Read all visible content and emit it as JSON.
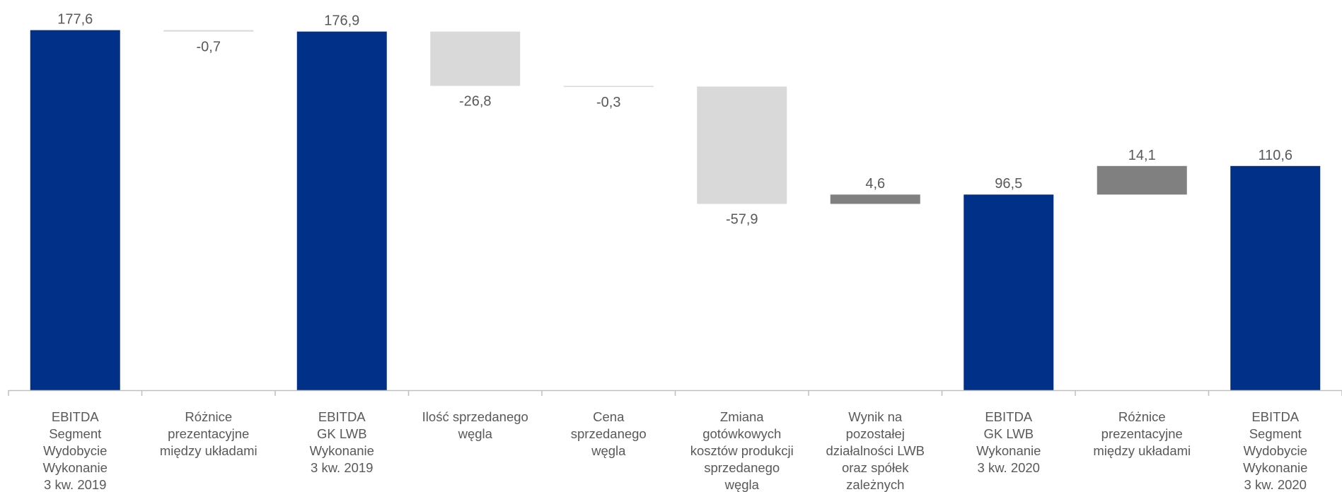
{
  "chart_data": {
    "type": "waterfall",
    "title": "",
    "xlabel": "",
    "ylabel": "",
    "ylim": [
      0,
      180
    ],
    "grid": false,
    "legend": "none",
    "colors": {
      "total": "#003087",
      "decrease": "#d9d9d9",
      "increase": "#808080",
      "axis": "#bfbfbf",
      "label": "#595959"
    },
    "bars": [
      {
        "kind": "total",
        "label_lines": [
          "EBITDA",
          "Segment",
          "Wydobycie",
          "Wykonanie",
          "3 kw. 2019"
        ],
        "value": 177.6,
        "value_label": "177,6"
      },
      {
        "kind": "delta",
        "label_lines": [
          "Różnice",
          "prezentacyjne",
          "między układami"
        ],
        "value": -0.7,
        "value_label": "-0,7"
      },
      {
        "kind": "total",
        "label_lines": [
          "EBITDA",
          "GK LWB",
          "Wykonanie",
          "3 kw. 2019"
        ],
        "value": 176.9,
        "value_label": "176,9"
      },
      {
        "kind": "delta",
        "label_lines": [
          "Ilość sprzedanego",
          "węgla"
        ],
        "value": -26.8,
        "value_label": "-26,8"
      },
      {
        "kind": "delta",
        "label_lines": [
          "Cena",
          "sprzedanego",
          "węgla"
        ],
        "value": -0.3,
        "value_label": "-0,3"
      },
      {
        "kind": "delta",
        "label_lines": [
          "Zmiana",
          "gotówkowych",
          "kosztów produkcji",
          "sprzedanego",
          "węgla"
        ],
        "value": -57.9,
        "value_label": "-57,9"
      },
      {
        "kind": "delta",
        "label_lines": [
          "Wynik na",
          "pozostałej",
          "działalności LWB",
          "oraz spółek",
          "zależnych"
        ],
        "value": 4.6,
        "value_label": "4,6"
      },
      {
        "kind": "total",
        "label_lines": [
          "EBITDA",
          "GK LWB",
          "Wykonanie",
          "3 kw. 2020"
        ],
        "value": 96.5,
        "value_label": "96,5"
      },
      {
        "kind": "delta",
        "label_lines": [
          "Różnice",
          "prezentacyjne",
          "między układami"
        ],
        "value": 14.1,
        "value_label": "14,1"
      },
      {
        "kind": "total",
        "label_lines": [
          "EBITDA",
          "Segment",
          "Wydobycie",
          "Wykonanie",
          "3 kw. 2020"
        ],
        "value": 110.6,
        "value_label": "110,6"
      }
    ]
  }
}
